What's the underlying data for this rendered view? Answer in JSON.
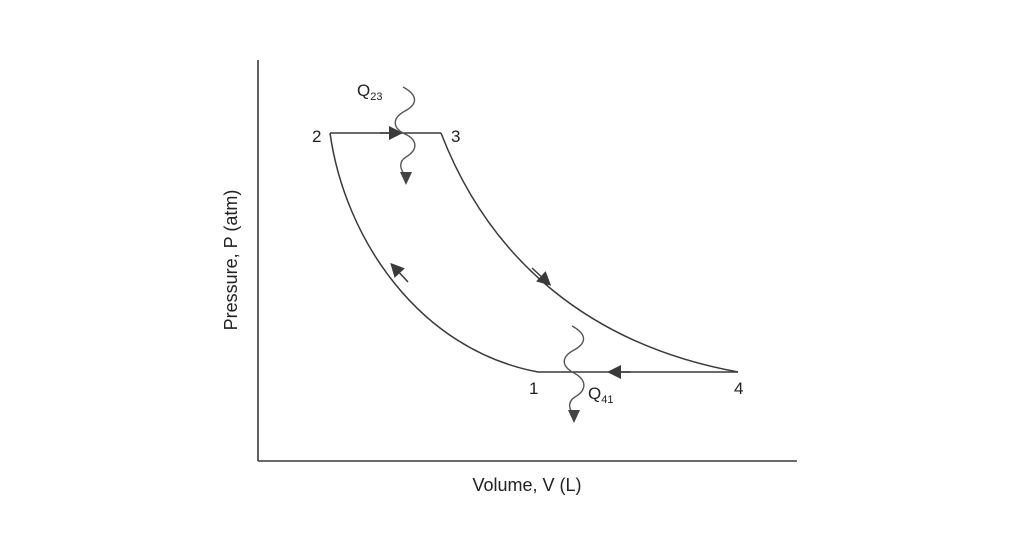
{
  "axes": {
    "xlabel": "Volume, V (L)",
    "ylabel": "Pressure, P (atm)"
  },
  "points": [
    "1",
    "2",
    "3",
    "4"
  ],
  "heat": {
    "q23": {
      "letter": "Q",
      "sub": "23"
    },
    "q41": {
      "letter": "Q",
      "sub": "41"
    }
  },
  "colors": {
    "line": "#3a3a3a",
    "arrow": "#444444"
  }
}
